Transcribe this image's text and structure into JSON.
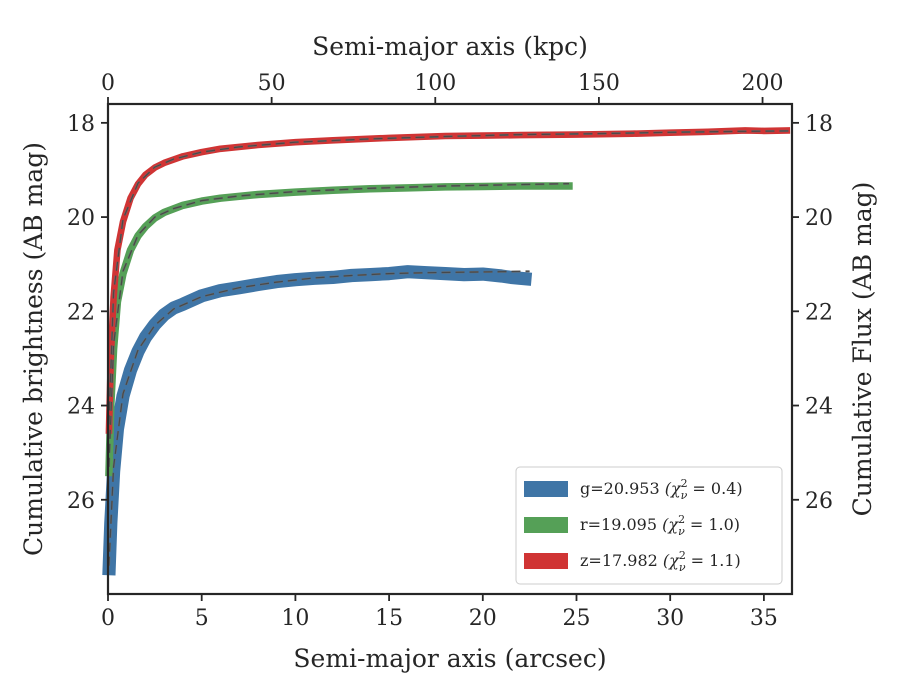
{
  "chart_data": {
    "type": "line",
    "xlabel": "Semi-major axis (arcsec)",
    "ylabel": "Cumulative brightness (AB mag)",
    "x2label": "Semi-major axis (kpc)",
    "y2label": "Cumulative Flux (AB mag)",
    "xlim": [
      0,
      36.5
    ],
    "ylim": [
      28.0,
      17.6
    ],
    "y_inverted": true,
    "x2lim": [
      0,
      209
    ],
    "xticks": [
      "0",
      "5",
      "10",
      "15",
      "20",
      "25",
      "30",
      "35"
    ],
    "yticks": [
      "18",
      "20",
      "22",
      "24",
      "26"
    ],
    "x2ticks": [
      "0",
      "50",
      "100",
      "150",
      "200"
    ],
    "y2ticks": [
      "18",
      "20",
      "22",
      "24",
      "26"
    ],
    "grid": false,
    "legend_position": "lower-right",
    "series": [
      {
        "name": "g=20.953",
        "chi_label": "(χ",
        "chi_sub": "ν",
        "chi_sup": "2",
        "chi_value": " = 0.4)",
        "color": "#3f75a6",
        "band_width": 0.14,
        "x": [
          0.05,
          0.15,
          0.3,
          0.5,
          0.8,
          1.2,
          1.6,
          2.0,
          2.5,
          3.0,
          3.5,
          4.0,
          5.0,
          6.0,
          7.0,
          8.0,
          9.0,
          10.0,
          11.0,
          12.0,
          13.0,
          14.0,
          15.0,
          16.0,
          17.0,
          18.0,
          19.0,
          20.0,
          21.0,
          21.5,
          22.0,
          22.6
        ],
        "values": [
          27.6,
          26.5,
          25.4,
          24.5,
          23.8,
          23.25,
          22.85,
          22.55,
          22.28,
          22.07,
          21.93,
          21.85,
          21.67,
          21.56,
          21.5,
          21.43,
          21.37,
          21.33,
          21.3,
          21.28,
          21.24,
          21.22,
          21.2,
          21.16,
          21.18,
          21.2,
          21.22,
          21.21,
          21.25,
          21.28,
          21.3,
          21.32
        ],
        "model_x": [
          0.05,
          0.3,
          0.8,
          1.6,
          2.5,
          3.5,
          5.0,
          7.0,
          9.0,
          11.0,
          13.0,
          15.0,
          17.0,
          19.0,
          21.0,
          22.5
        ],
        "model_values": [
          27.4,
          25.3,
          23.75,
          22.82,
          22.3,
          21.95,
          21.69,
          21.5,
          21.38,
          21.29,
          21.24,
          21.2,
          21.18,
          21.17,
          21.16,
          21.15
        ]
      },
      {
        "name": "r=19.095",
        "chi_label": "(χ",
        "chi_sub": "ν",
        "chi_sup": "2",
        "chi_value": " = 1.0)",
        "color": "#55a057",
        "band_width": 0.08,
        "x": [
          0.05,
          0.15,
          0.3,
          0.5,
          0.8,
          1.2,
          1.6,
          2.0,
          2.5,
          3.0,
          4.0,
          5.0,
          6.0,
          8.0,
          10.0,
          12.0,
          14.0,
          16.0,
          18.0,
          20.0,
          22.0,
          24.0,
          24.8
        ],
        "values": [
          25.5,
          24.0,
          22.8,
          21.8,
          21.2,
          20.7,
          20.4,
          20.2,
          20.02,
          19.9,
          19.75,
          19.66,
          19.6,
          19.52,
          19.47,
          19.43,
          19.4,
          19.38,
          19.36,
          19.35,
          19.34,
          19.34,
          19.34
        ],
        "model_x": [
          0.05,
          0.3,
          0.8,
          1.6,
          2.5,
          3.5,
          5.0,
          7.0,
          10.0,
          14.0,
          18.0,
          22.0,
          24.6
        ],
        "model_values": [
          25.3,
          22.7,
          21.15,
          20.38,
          20.0,
          19.82,
          19.65,
          19.55,
          19.46,
          19.39,
          19.34,
          19.31,
          19.29
        ]
      },
      {
        "name": "z=17.982",
        "chi_label": "(χ",
        "chi_sub": "ν",
        "chi_sup": "2",
        "chi_value": " = 1.1)",
        "color": "#d03434",
        "band_width": 0.07,
        "x": [
          0.05,
          0.15,
          0.3,
          0.5,
          0.8,
          1.2,
          1.6,
          2.0,
          2.5,
          3.0,
          4.0,
          5.0,
          6.0,
          8.0,
          10.0,
          12.0,
          15.0,
          18.0,
          20.0,
          22.0,
          25.0,
          28.0,
          30.0,
          32.0,
          34.0,
          35.0,
          36.4
        ],
        "values": [
          24.6,
          23.0,
          21.7,
          20.7,
          20.1,
          19.6,
          19.3,
          19.1,
          18.95,
          18.85,
          18.71,
          18.62,
          18.55,
          18.47,
          18.41,
          18.37,
          18.32,
          18.28,
          18.27,
          18.26,
          18.25,
          18.23,
          18.21,
          18.19,
          18.16,
          18.17,
          18.16
        ],
        "model_x": [
          0.05,
          0.3,
          0.8,
          1.6,
          2.5,
          3.5,
          5.0,
          7.0,
          10.0,
          14.0,
          18.0,
          22.0,
          26.0,
          30.0,
          34.0,
          36.4
        ],
        "model_values": [
          24.4,
          21.6,
          20.05,
          19.28,
          18.94,
          18.77,
          18.62,
          18.51,
          18.41,
          18.34,
          18.29,
          18.25,
          18.23,
          18.2,
          18.18,
          18.17
        ]
      }
    ]
  }
}
